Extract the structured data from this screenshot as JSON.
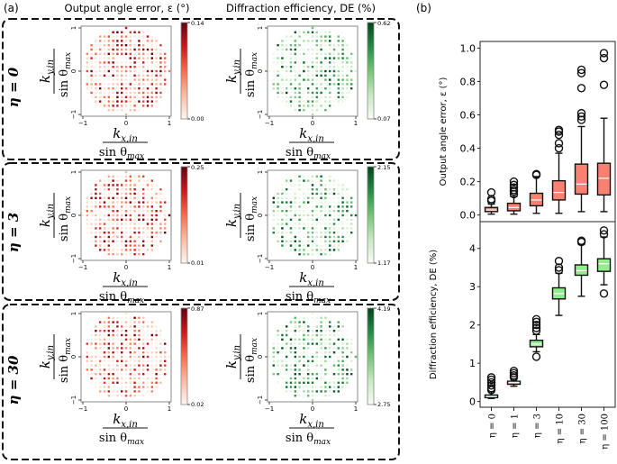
{
  "panel_labels": {
    "a": "(a)",
    "b": "(b)"
  },
  "column_titles": {
    "error": "Output angle error, ε (°)",
    "de": "Diffraction efficiency, DE (%)"
  },
  "axis_labels": {
    "x_num": "k",
    "x_sub": "x,in",
    "y_num": "k",
    "y_sub": "y,in",
    "den": "sin θ",
    "den_sub": "max"
  },
  "map_ticks": [
    "−1",
    "0",
    "1"
  ],
  "chart_data": [
    {
      "type": "heatmap",
      "title": "Output angle error, ε (°)",
      "row": "η = 0",
      "colormap": "Reds",
      "colorbar_range": [
        0.0,
        0.14
      ],
      "colorbar_labels": [
        "0.14",
        "0.00"
      ],
      "xlim": [
        -1,
        1
      ],
      "ylim": [
        -1,
        1
      ],
      "xticks": [
        -1,
        0,
        1
      ],
      "yticks": [
        -1,
        0,
        1
      ],
      "grid_points": 21,
      "seed": 11
    },
    {
      "type": "heatmap",
      "title": "Diffraction efficiency, DE (%)",
      "row": "η = 0",
      "colormap": "Greens",
      "colorbar_range": [
        0.07,
        0.62
      ],
      "colorbar_labels": [
        "0.62",
        "0.07"
      ],
      "xlim": [
        -1,
        1
      ],
      "ylim": [
        -1,
        1
      ],
      "xticks": [
        -1,
        0,
        1
      ],
      "yticks": [
        -1,
        0,
        1
      ],
      "grid_points": 21,
      "seed": 23
    },
    {
      "type": "heatmap",
      "title": "Output angle error, ε (°)",
      "row": "η = 3",
      "colormap": "Reds",
      "colorbar_range": [
        0.01,
        0.25
      ],
      "colorbar_labels": [
        "0.25",
        "0.01"
      ],
      "xlim": [
        -1,
        1
      ],
      "ylim": [
        -1,
        1
      ],
      "xticks": [
        -1,
        0,
        1
      ],
      "yticks": [
        -1,
        0,
        1
      ],
      "grid_points": 21,
      "seed": 37
    },
    {
      "type": "heatmap",
      "title": "Diffraction efficiency, DE (%)",
      "row": "η = 3",
      "colormap": "Greens",
      "colorbar_range": [
        1.17,
        2.15
      ],
      "colorbar_labels": [
        "2.15",
        "1.17"
      ],
      "xlim": [
        -1,
        1
      ],
      "ylim": [
        -1,
        1
      ],
      "xticks": [
        -1,
        0,
        1
      ],
      "yticks": [
        -1,
        0,
        1
      ],
      "grid_points": 21,
      "seed": 41
    },
    {
      "type": "heatmap",
      "title": "Output angle error, ε (°)",
      "row": "η = 30",
      "colormap": "Reds",
      "colorbar_range": [
        0.02,
        0.87
      ],
      "colorbar_labels": [
        "0.87",
        "0.02"
      ],
      "xlim": [
        -1,
        1
      ],
      "ylim": [
        -1,
        1
      ],
      "xticks": [
        -1,
        0,
        1
      ],
      "yticks": [
        -1,
        0,
        1
      ],
      "grid_points": 21,
      "seed": 53
    },
    {
      "type": "heatmap",
      "title": "Diffraction efficiency, DE (%)",
      "row": "η = 30",
      "colormap": "Greens",
      "colorbar_range": [
        2.75,
        4.19
      ],
      "colorbar_labels": [
        "4.19",
        "2.75"
      ],
      "xlim": [
        -1,
        1
      ],
      "ylim": [
        -1,
        1
      ],
      "xticks": [
        -1,
        0,
        1
      ],
      "yticks": [
        -1,
        0,
        1
      ],
      "grid_points": 21,
      "seed": 67
    },
    {
      "type": "box",
      "ylabel": "Output angle error, ε (°)",
      "ylim": [
        -0.04,
        1.04
      ],
      "yticks": [
        0.0,
        0.2,
        0.4,
        0.6,
        0.8,
        1.0
      ],
      "ytick_labels": [
        "0.0",
        "0.2",
        "0.4",
        "0.6",
        "0.8",
        "1.0"
      ],
      "categories": [
        "η = 0",
        "η = 1",
        "η = 3",
        "η = 10",
        "η = 30",
        "η = 100"
      ],
      "box_color": "#fa8072",
      "boxes": [
        {
          "whislo": 0.005,
          "q1": 0.02,
          "med": 0.03,
          "q3": 0.045,
          "whishi": 0.065,
          "fliers": [
            0.085,
            0.095,
            0.135
          ]
        },
        {
          "whislo": 0.005,
          "q1": 0.025,
          "med": 0.045,
          "q3": 0.07,
          "whishi": 0.11,
          "fliers": [
            0.125,
            0.14,
            0.15,
            0.165,
            0.18,
            0.2
          ]
        },
        {
          "whislo": 0.01,
          "q1": 0.055,
          "med": 0.09,
          "q3": 0.13,
          "whishi": 0.23,
          "fliers": [
            0.24,
            0.245
          ]
        },
        {
          "whislo": 0.01,
          "q1": 0.09,
          "med": 0.135,
          "q3": 0.205,
          "whishi": 0.37,
          "fliers": [
            0.4,
            0.43,
            0.48,
            0.5,
            0.51
          ]
        },
        {
          "whislo": 0.02,
          "q1": 0.125,
          "med": 0.185,
          "q3": 0.305,
          "whishi": 0.53,
          "fliers": [
            0.57,
            0.59,
            0.61,
            0.76,
            0.85,
            0.87
          ]
        },
        {
          "whislo": 0.02,
          "q1": 0.12,
          "med": 0.22,
          "q3": 0.31,
          "whishi": 0.58,
          "fliers": [
            0.78,
            0.94,
            0.97
          ]
        }
      ]
    },
    {
      "type": "box",
      "ylabel": "Diffraction efficiency, DE (%)",
      "ylim": [
        -0.15,
        4.7
      ],
      "yticks": [
        0,
        1,
        2,
        3,
        4
      ],
      "ytick_labels": [
        "0",
        "1",
        "2",
        "3",
        "4"
      ],
      "categories": [
        "η = 0",
        "η = 1",
        "η = 3",
        "η = 10",
        "η = 30",
        "η = 100"
      ],
      "box_color": "#90ee90",
      "boxes": [
        {
          "whislo": 0.08,
          "q1": 0.1,
          "med": 0.13,
          "q3": 0.17,
          "whishi": 0.25,
          "fliers": [
            0.3,
            0.35,
            0.42,
            0.5,
            0.57,
            0.63
          ]
        },
        {
          "whislo": 0.4,
          "q1": 0.45,
          "med": 0.5,
          "q3": 0.53,
          "whishi": 0.58,
          "fliers": [
            0.63,
            0.68,
            0.74,
            0.8
          ]
        },
        {
          "whislo": 1.3,
          "q1": 1.43,
          "med": 1.5,
          "q3": 1.6,
          "whishi": 1.75,
          "fliers": [
            1.17,
            1.85,
            1.92,
            2.0,
            2.08,
            2.15
          ]
        },
        {
          "whislo": 2.25,
          "q1": 2.68,
          "med": 2.82,
          "q3": 2.97,
          "whishi": 3.35,
          "fliers": [
            3.43,
            3.5,
            3.67
          ]
        },
        {
          "whislo": 2.75,
          "q1": 3.3,
          "med": 3.42,
          "q3": 3.57,
          "whishi": 4.1,
          "fliers": [
            4.17,
            4.2
          ]
        },
        {
          "whislo": 3.05,
          "q1": 3.4,
          "med": 3.6,
          "q3": 3.73,
          "whishi": 4.3,
          "fliers": [
            2.82,
            4.37,
            4.47
          ]
        }
      ]
    }
  ]
}
